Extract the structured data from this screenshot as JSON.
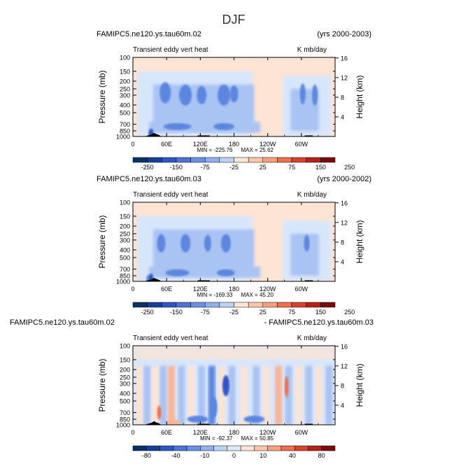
{
  "figure": {
    "title": "DJF"
  },
  "colors": {
    "blue_dark": "#08306b",
    "blue": "#2f56c6",
    "blue_mid": "#5b86e0",
    "blue_light": "#a9c3f2",
    "blue_pale": "#d8e6fb",
    "orange_pale": "#fde4d3",
    "orange_light": "#f9b493",
    "orange": "#ef6f4e",
    "red": "#c8321f",
    "red_dark": "#7a0b0b",
    "land": "#000000"
  },
  "chart_data": [
    {
      "type": "heatmap",
      "left_title": "FAMIPC5.ne120.ys.tau60m.02",
      "right_title": "(yrs 2000-2003)",
      "variable": "Transient eddy vert heat",
      "units": "K mb/day",
      "ylabel": "Pressure (mb)",
      "ylabel_right": "Height (km)",
      "x_tick_labels": [
        "0",
        "60E",
        "120E",
        "180",
        "120W",
        "60W"
      ],
      "y_tick_labels": [
        "100",
        "150",
        "200",
        "250",
        "300",
        "400",
        "500",
        "700",
        "850",
        "1000"
      ],
      "height_ticks": [
        "4",
        "8",
        "12",
        "16"
      ],
      "min_label": "MIN = -225.76",
      "max_label": "MAX =  25.62",
      "min": -225.76,
      "max": 25.62,
      "colorbar_labels": [
        "-250",
        "-150",
        "-75",
        "-25",
        "25",
        "75",
        "150",
        "250"
      ],
      "colorbar_levels": [
        -250,
        -200,
        -150,
        -100,
        -75,
        -50,
        -25,
        25,
        50,
        75,
        100,
        150,
        200,
        250
      ]
    },
    {
      "type": "heatmap",
      "left_title": "FAMIPC5.ne120.ys.tau60m.03",
      "right_title": "(yrs 2000-2002)",
      "variable": "Transient eddy vert heat",
      "units": "K mb/day",
      "ylabel": "Pressure (mb)",
      "ylabel_right": "Height (km)",
      "x_tick_labels": [
        "0",
        "60E",
        "120E",
        "180",
        "120W",
        "60W"
      ],
      "y_tick_labels": [
        "100",
        "150",
        "200",
        "250",
        "300",
        "400",
        "500",
        "700",
        "850",
        "1000"
      ],
      "height_ticks": [
        "4",
        "8",
        "12",
        "16"
      ],
      "min_label": "MIN = -169.33",
      "max_label": "MAX =  45.20",
      "min": -169.33,
      "max": 45.2,
      "colorbar_labels": [
        "-250",
        "-150",
        "-75",
        "-25",
        "25",
        "75",
        "150",
        "250"
      ],
      "colorbar_levels": [
        -250,
        -200,
        -150,
        -100,
        -75,
        -50,
        -25,
        25,
        50,
        75,
        100,
        150,
        200,
        250
      ]
    },
    {
      "type": "heatmap",
      "left_title": "FAMIPC5.ne120.ys.tau60m.02",
      "right_title": "- FAMIPC5.ne120.ys.tau60m.03",
      "variable": "Transient eddy vert heat",
      "units": "K mb/day",
      "ylabel": "Pressure (mb)",
      "ylabel_right": "Height (km)",
      "x_tick_labels": [
        "0",
        "60E",
        "120E",
        "180",
        "120W",
        "60W"
      ],
      "y_tick_labels": [
        "100",
        "150",
        "200",
        "250",
        "300",
        "400",
        "500",
        "700",
        "850",
        "1000"
      ],
      "height_ticks": [
        "4",
        "8",
        "12",
        "16"
      ],
      "min_label": "MIN = -92.37",
      "max_label": "MAX =  50.85",
      "min": -92.37,
      "max": 50.85,
      "colorbar_labels": [
        "-80",
        "-40",
        "-10",
        "0",
        "10",
        "40",
        "80"
      ],
      "colorbar_levels": [
        -100,
        -80,
        -60,
        -40,
        -20,
        -10,
        -5,
        0,
        5,
        10,
        20,
        40,
        60,
        80,
        100
      ]
    }
  ]
}
